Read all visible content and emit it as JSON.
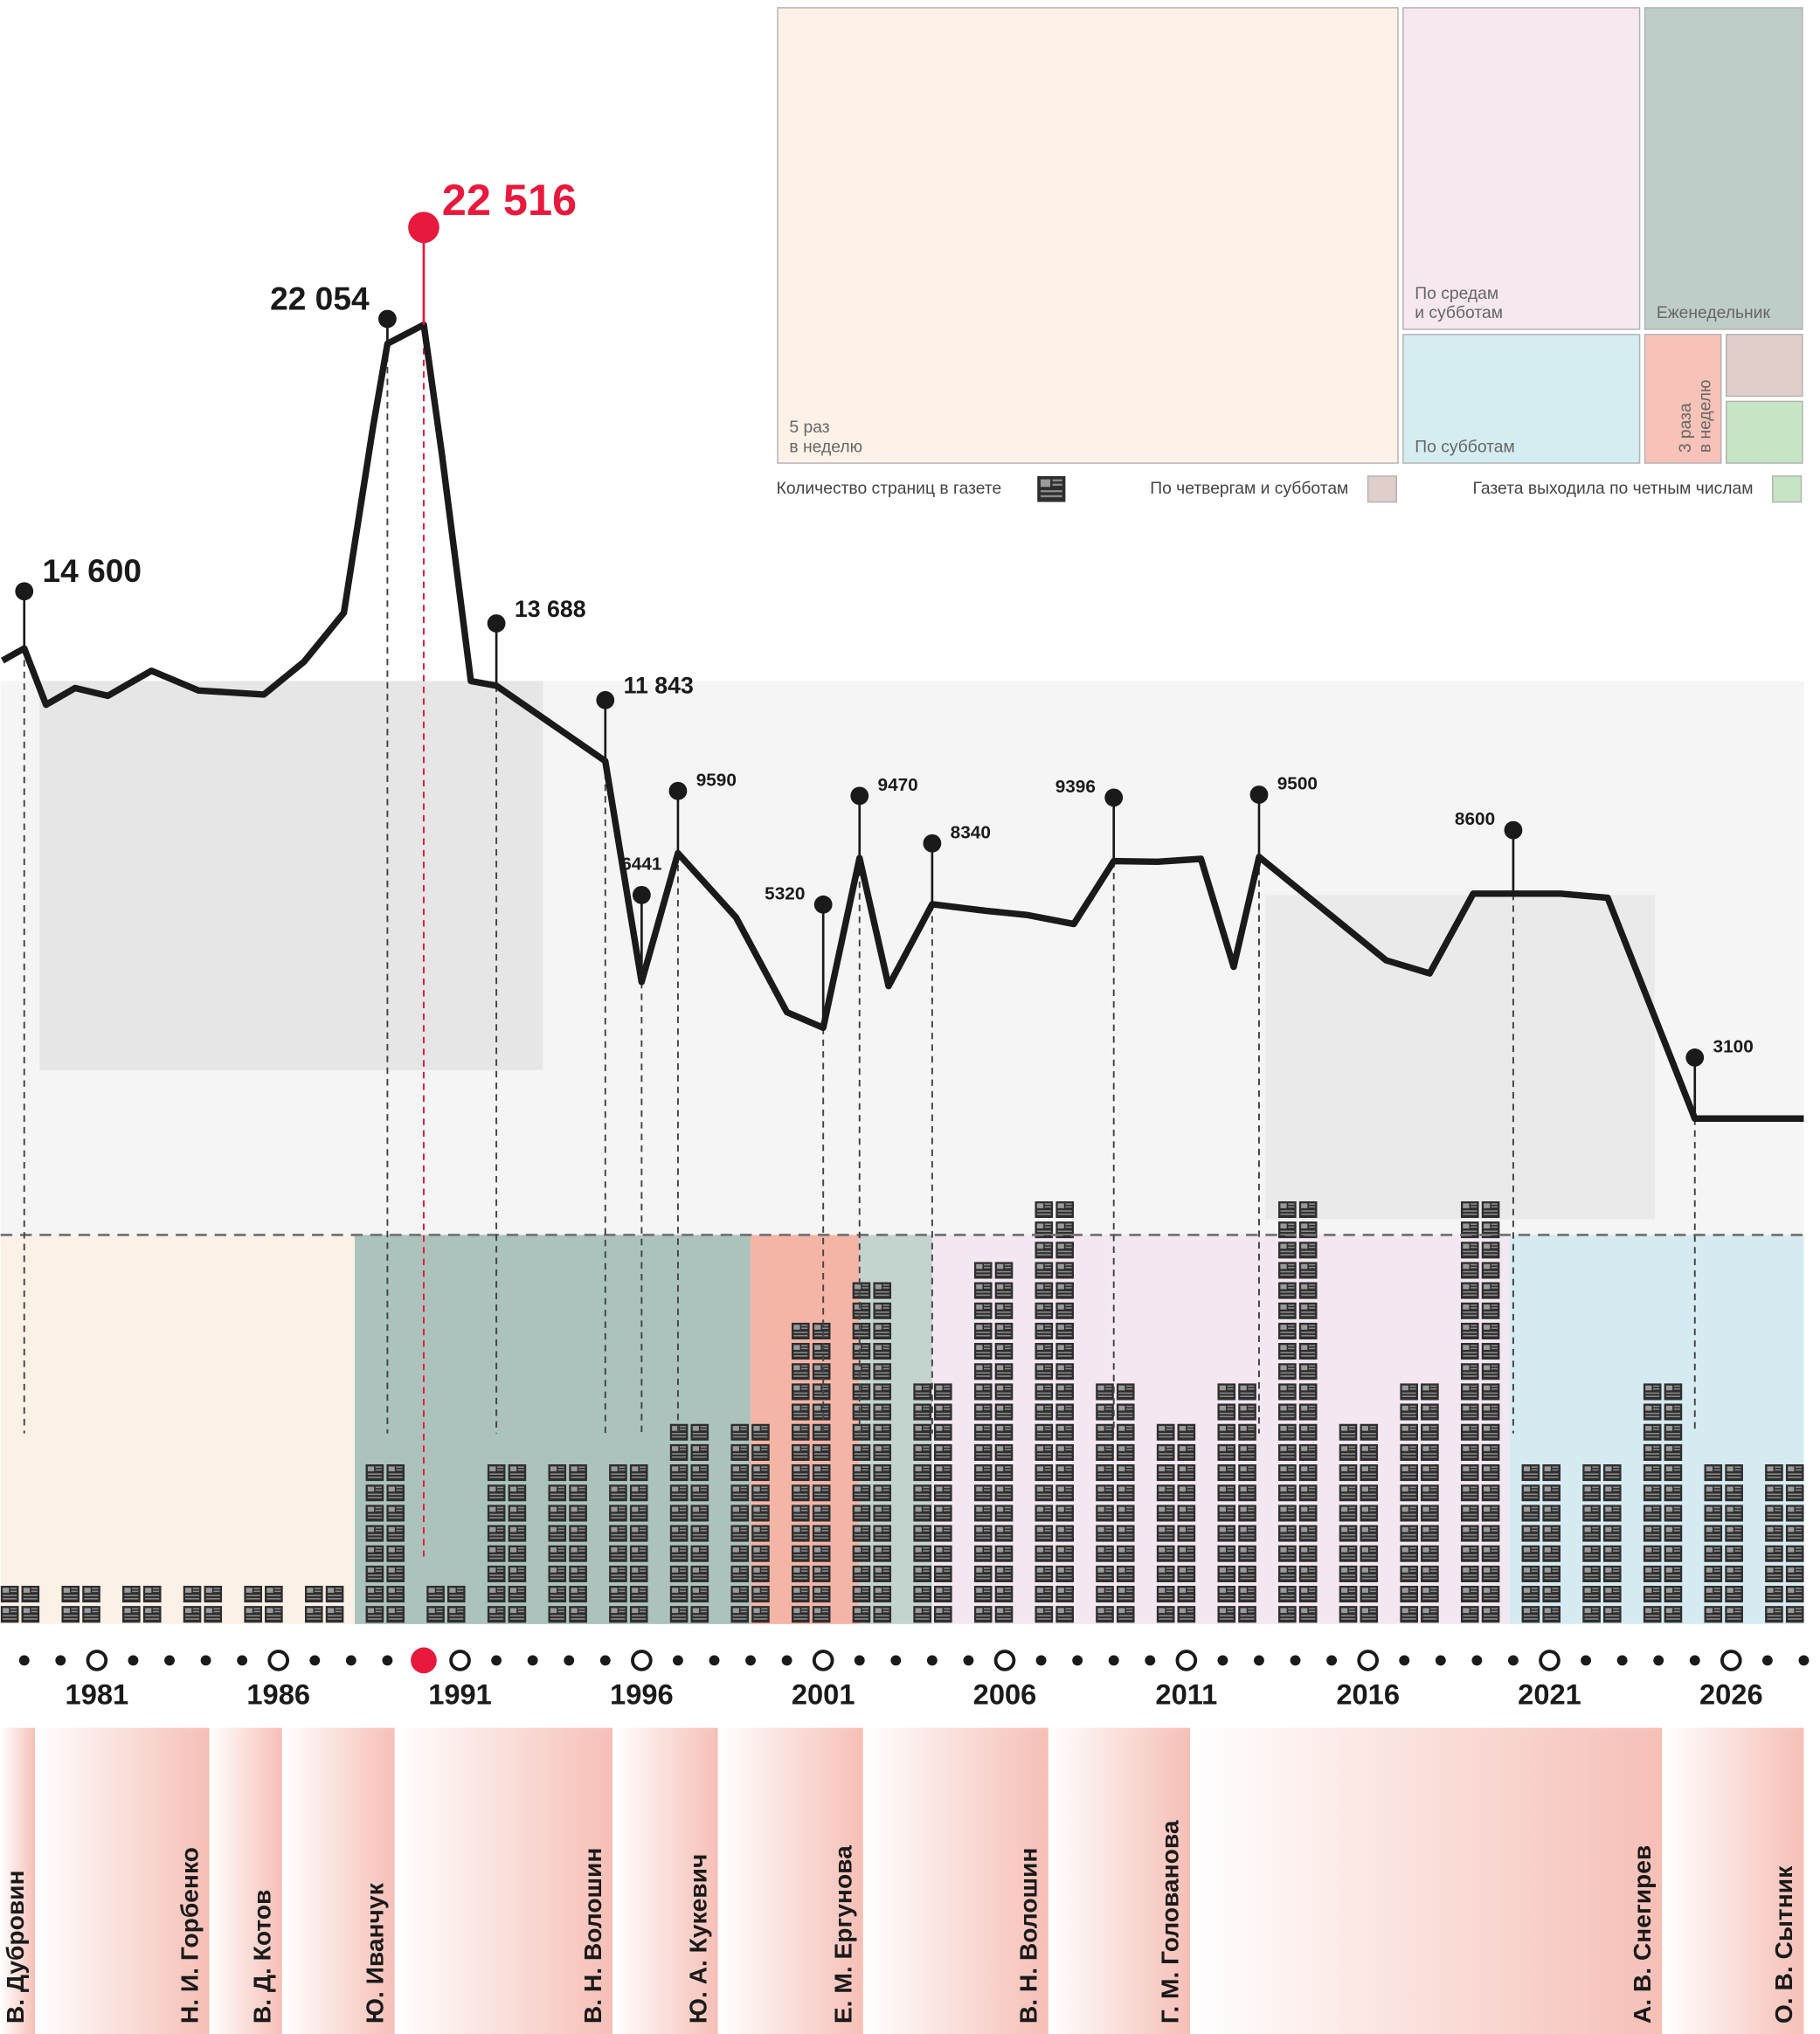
{
  "chart_data": [
    {
      "type": "line",
      "color": "#1a1a1a",
      "highlight_color": "#e8193c",
      "x": [
        1978.4,
        1979,
        1979.6,
        1980.4,
        1981.3,
        1982.5,
        1983.8,
        1985.6,
        1986.7,
        1987.8,
        1988.6,
        1989,
        1990,
        1990.5,
        1991.3,
        1992,
        1995,
        1996,
        1997,
        1998.6,
        2000,
        2001,
        2002,
        2002.8,
        2004,
        2005.5,
        2006.6,
        2007.9,
        2009,
        2010.2,
        2011.4,
        2012.3,
        2013,
        2016.5,
        2017.7,
        2018.9,
        2020,
        2021.3,
        2022.6,
        2025,
        2028
      ],
      "values": [
        14300,
        14600,
        13220,
        13630,
        13440,
        14050,
        13570,
        13470,
        14270,
        15470,
        20000,
        22054,
        22516,
        19340,
        13800,
        13688,
        11843,
        6441,
        9590,
        8020,
        5700,
        5320,
        9470,
        6340,
        8340,
        8180,
        8080,
        7860,
        9396,
        9380,
        9450,
        6810,
        9500,
        6970,
        6650,
        8600,
        8600,
        8600,
        8500,
        3100,
        3100
      ],
      "value_labels": [
        null,
        "14 600",
        null,
        null,
        null,
        null,
        null,
        null,
        null,
        null,
        null,
        "22 054",
        "22 516",
        null,
        null,
        "13 688",
        "11 843",
        "6441",
        "9590",
        null,
        null,
        "5320",
        "9470",
        null,
        "8340",
        null,
        null,
        null,
        "9396",
        null,
        null,
        null,
        "9500",
        null,
        null,
        null,
        "8600",
        null,
        null,
        "3100",
        null
      ],
      "xlim": [
        1978.35,
        2028
      ],
      "ylim": [
        0,
        25000
      ],
      "xticks": [
        1981,
        1986,
        1991,
        1996,
        2001,
        2006,
        2011,
        2016,
        2021,
        2026
      ]
    },
    {
      "type": "pictogram",
      "name": "Количество страниц в газете",
      "color": "#2e2e2e",
      "values": [
        4,
        4,
        4,
        4,
        4,
        4,
        16,
        4,
        16,
        16,
        16,
        20,
        20,
        30,
        34,
        24,
        36,
        42,
        24,
        20,
        24,
        42,
        20,
        24,
        42,
        16,
        16,
        24,
        16,
        16
      ]
    },
    {
      "type": "treemap",
      "items": [
        {
          "lines": [
            "5 раз",
            "в неделю"
          ],
          "color": "#fef2e8",
          "value": 161
        },
        {
          "lines": [
            "По средам",
            "и субботам"
          ],
          "color": "#f6e7f1",
          "value": 45
        },
        {
          "lines": [
            "Еженедельник"
          ],
          "color": "#bfcdc9",
          "value": 30
        },
        {
          "lines": [
            "По субботам"
          ],
          "color": "#d4edf1",
          "value": 18
        },
        {
          "lines": [
            "3 раза",
            "в неделю"
          ],
          "color": "#f7c3b8",
          "value": 6
        },
        {
          "legend": "По четвергам и субботам",
          "color": "#e0cecb",
          "value": 3
        },
        {
          "legend": "Газета выходила по четным числам",
          "color": "#c6e5c5",
          "value": 3
        }
      ],
      "timeline": [
        {
          "from": 1978.35,
          "to": 1988.1,
          "color": "#fbeee2"
        },
        {
          "from": 1988.1,
          "to": 1999,
          "color": "#9cb9b0"
        },
        {
          "from": 1999,
          "to": 2002,
          "color": "#f2a898"
        },
        {
          "from": 2002,
          "to": 2004,
          "color": "#b9ccc5"
        },
        {
          "from": 2004,
          "to": 2019.9,
          "color": "#f1e3ee"
        },
        {
          "from": 2019.9,
          "to": 2028,
          "color": "#cfe8ee"
        }
      ]
    }
  ],
  "editors": [
    {
      "name": "В. Дубровин",
      "from": 1978.35,
      "to": 1979.3
    },
    {
      "name": "Н. И. Горбенко",
      "from": 1979.3,
      "to": 1984.1
    },
    {
      "name": "В. Д. Котов",
      "from": 1984.1,
      "to": 1986.1
    },
    {
      "name": "Ю. Иванчук",
      "from": 1986.1,
      "to": 1989.2
    },
    {
      "name": "В. Н. Волошин",
      "from": 1989.2,
      "to": 1995.2
    },
    {
      "name": "Ю. А. Кукевич",
      "from": 1995.2,
      "to": 1998.1
    },
    {
      "name": "Е. М. Ергунова",
      "from": 1998.1,
      "to": 2002.1
    },
    {
      "name": "В. Н. Волошин",
      "from": 2002.1,
      "to": 2007.2
    },
    {
      "name": "Г. М. Голованова",
      "from": 2007.2,
      "to": 2011.1
    },
    {
      "name": "А. В. Снегирев",
      "from": 2011.1,
      "to": 2024.1
    },
    {
      "name": "О. В. Сытник",
      "from": 2024.1,
      "to": 2028
    }
  ]
}
